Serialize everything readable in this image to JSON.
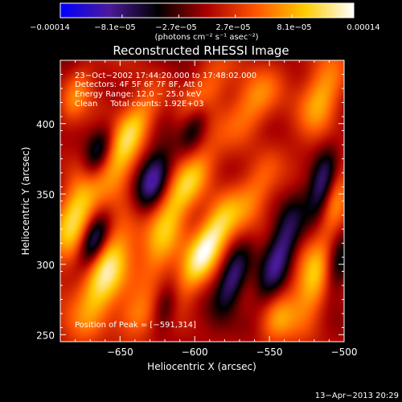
{
  "chart_data": {
    "type": "heatmap",
    "title": "Reconstructed RHESSI Image",
    "xlabel": "Heliocentric X (arcsec)",
    "ylabel": "Heliocentric Y (arcsec)",
    "xlim": [
      -690,
      -500
    ],
    "ylim": [
      245,
      445
    ],
    "x_ticks": [
      -650,
      -600,
      -550,
      -500
    ],
    "x_tick_labels": [
      "−650",
      "−600",
      "−550",
      "−500"
    ],
    "y_ticks": [
      250,
      300,
      350,
      400
    ],
    "y_tick_labels": [
      "250",
      "300",
      "350",
      "400"
    ],
    "colorbar": {
      "vmin": -0.00014,
      "vmax": 0.00014,
      "tick_values": [
        -0.00014,
        -8.1e-05,
        -2.7e-05,
        2.7e-05,
        8.1e-05,
        0.00014
      ],
      "tick_labels": [
        "−0.00014",
        "−8.1e−05",
        "−2.7e−05",
        "2.7e−05",
        "8.1e−05",
        "0.00014"
      ],
      "units_label": "(photons cm⁻² s⁻¹ asec⁻²)",
      "colormap": [
        "#0000ff",
        "#4b1a9a",
        "#000000",
        "#aa0000",
        "#ff5500",
        "#ffcc00",
        "#ffffff"
      ]
    },
    "annotations": [
      "23−Oct−2002 17:44:20.000 to 17:48:02.000",
      "Detectors: 4F 5F 6F 7F 8F, Att 0",
      "Energy Range: 12.0 − 25.0 keV",
      "Clean     Total counts: 1.92E+03"
    ],
    "peak_label": "Position of Peak = [−591,314]",
    "peak": {
      "x": -591,
      "y": 314,
      "value": 0.00014
    },
    "blobs": [
      {
        "x": -591,
        "y": 314,
        "amp": 1.0,
        "sx": 8,
        "sy": 26,
        "rot": 0.45
      },
      {
        "x": -660,
        "y": 292,
        "amp": 0.9,
        "sx": 10,
        "sy": 30,
        "rot": 0.35
      },
      {
        "x": -622,
        "y": 320,
        "amp": 0.55,
        "sx": 9,
        "sy": 28,
        "rot": 0.3
      },
      {
        "x": -680,
        "y": 335,
        "amp": 0.75,
        "sx": 9,
        "sy": 22,
        "rot": 0.3
      },
      {
        "x": -520,
        "y": 290,
        "amp": 0.7,
        "sx": 9,
        "sy": 26,
        "rot": 0.2
      },
      {
        "x": -640,
        "y": 400,
        "amp": 0.6,
        "sx": 8,
        "sy": 22,
        "rot": 0.5
      },
      {
        "x": -560,
        "y": 415,
        "amp": 0.55,
        "sx": 10,
        "sy": 22,
        "rot": 0.5
      },
      {
        "x": -515,
        "y": 420,
        "amp": 0.55,
        "sx": 9,
        "sy": 20,
        "rot": 0.3
      },
      {
        "x": -603,
        "y": 360,
        "amp": 0.5,
        "sx": 8,
        "sy": 20,
        "rot": 0.5
      },
      {
        "x": -560,
        "y": 350,
        "amp": 0.45,
        "sx": 8,
        "sy": 22,
        "rot": 0.4
      },
      {
        "x": -650,
        "y": 370,
        "amp": 0.45,
        "sx": 8,
        "sy": 18,
        "rot": 0.3
      },
      {
        "x": -595,
        "y": 420,
        "amp": 0.45,
        "sx": 8,
        "sy": 18,
        "rot": 0.5
      },
      {
        "x": -680,
        "y": 420,
        "amp": 0.45,
        "sx": 7,
        "sy": 16,
        "rot": 0.3
      },
      {
        "x": -640,
        "y": 262,
        "amp": 0.4,
        "sx": 10,
        "sy": 12,
        "rot": 0.2
      },
      {
        "x": -545,
        "y": 262,
        "amp": 0.45,
        "sx": 9,
        "sy": 14,
        "rot": 0.2
      },
      {
        "x": -505,
        "y": 350,
        "amp": 0.5,
        "sx": 7,
        "sy": 18,
        "rot": 0.2
      },
      {
        "x": -668,
        "y": 316,
        "amp": -0.8,
        "sx": 6,
        "sy": 14,
        "rot": 0.3
      },
      {
        "x": -628,
        "y": 360,
        "amp": -0.7,
        "sx": 7,
        "sy": 16,
        "rot": 0.3
      },
      {
        "x": -543,
        "y": 308,
        "amp": -0.75,
        "sx": 7,
        "sy": 28,
        "rot": 0.3
      },
      {
        "x": -515,
        "y": 355,
        "amp": -0.7,
        "sx": 6,
        "sy": 18,
        "rot": 0.2
      },
      {
        "x": -575,
        "y": 290,
        "amp": -0.6,
        "sx": 6,
        "sy": 16,
        "rot": 0.3
      },
      {
        "x": -600,
        "y": 400,
        "amp": -0.5,
        "sx": 6,
        "sy": 14,
        "rot": 0.3
      },
      {
        "x": -665,
        "y": 380,
        "amp": -0.55,
        "sx": 6,
        "sy": 14,
        "rot": 0.3
      },
      {
        "x": -505,
        "y": 300,
        "amp": -0.45,
        "sx": 6,
        "sy": 16,
        "rot": 0.2
      },
      {
        "x": -620,
        "y": 270,
        "amp": -0.45,
        "sx": 6,
        "sy": 12,
        "rot": 0.2
      }
    ]
  },
  "footer": {
    "timestamp": "13−Apr−2013 20:29"
  }
}
